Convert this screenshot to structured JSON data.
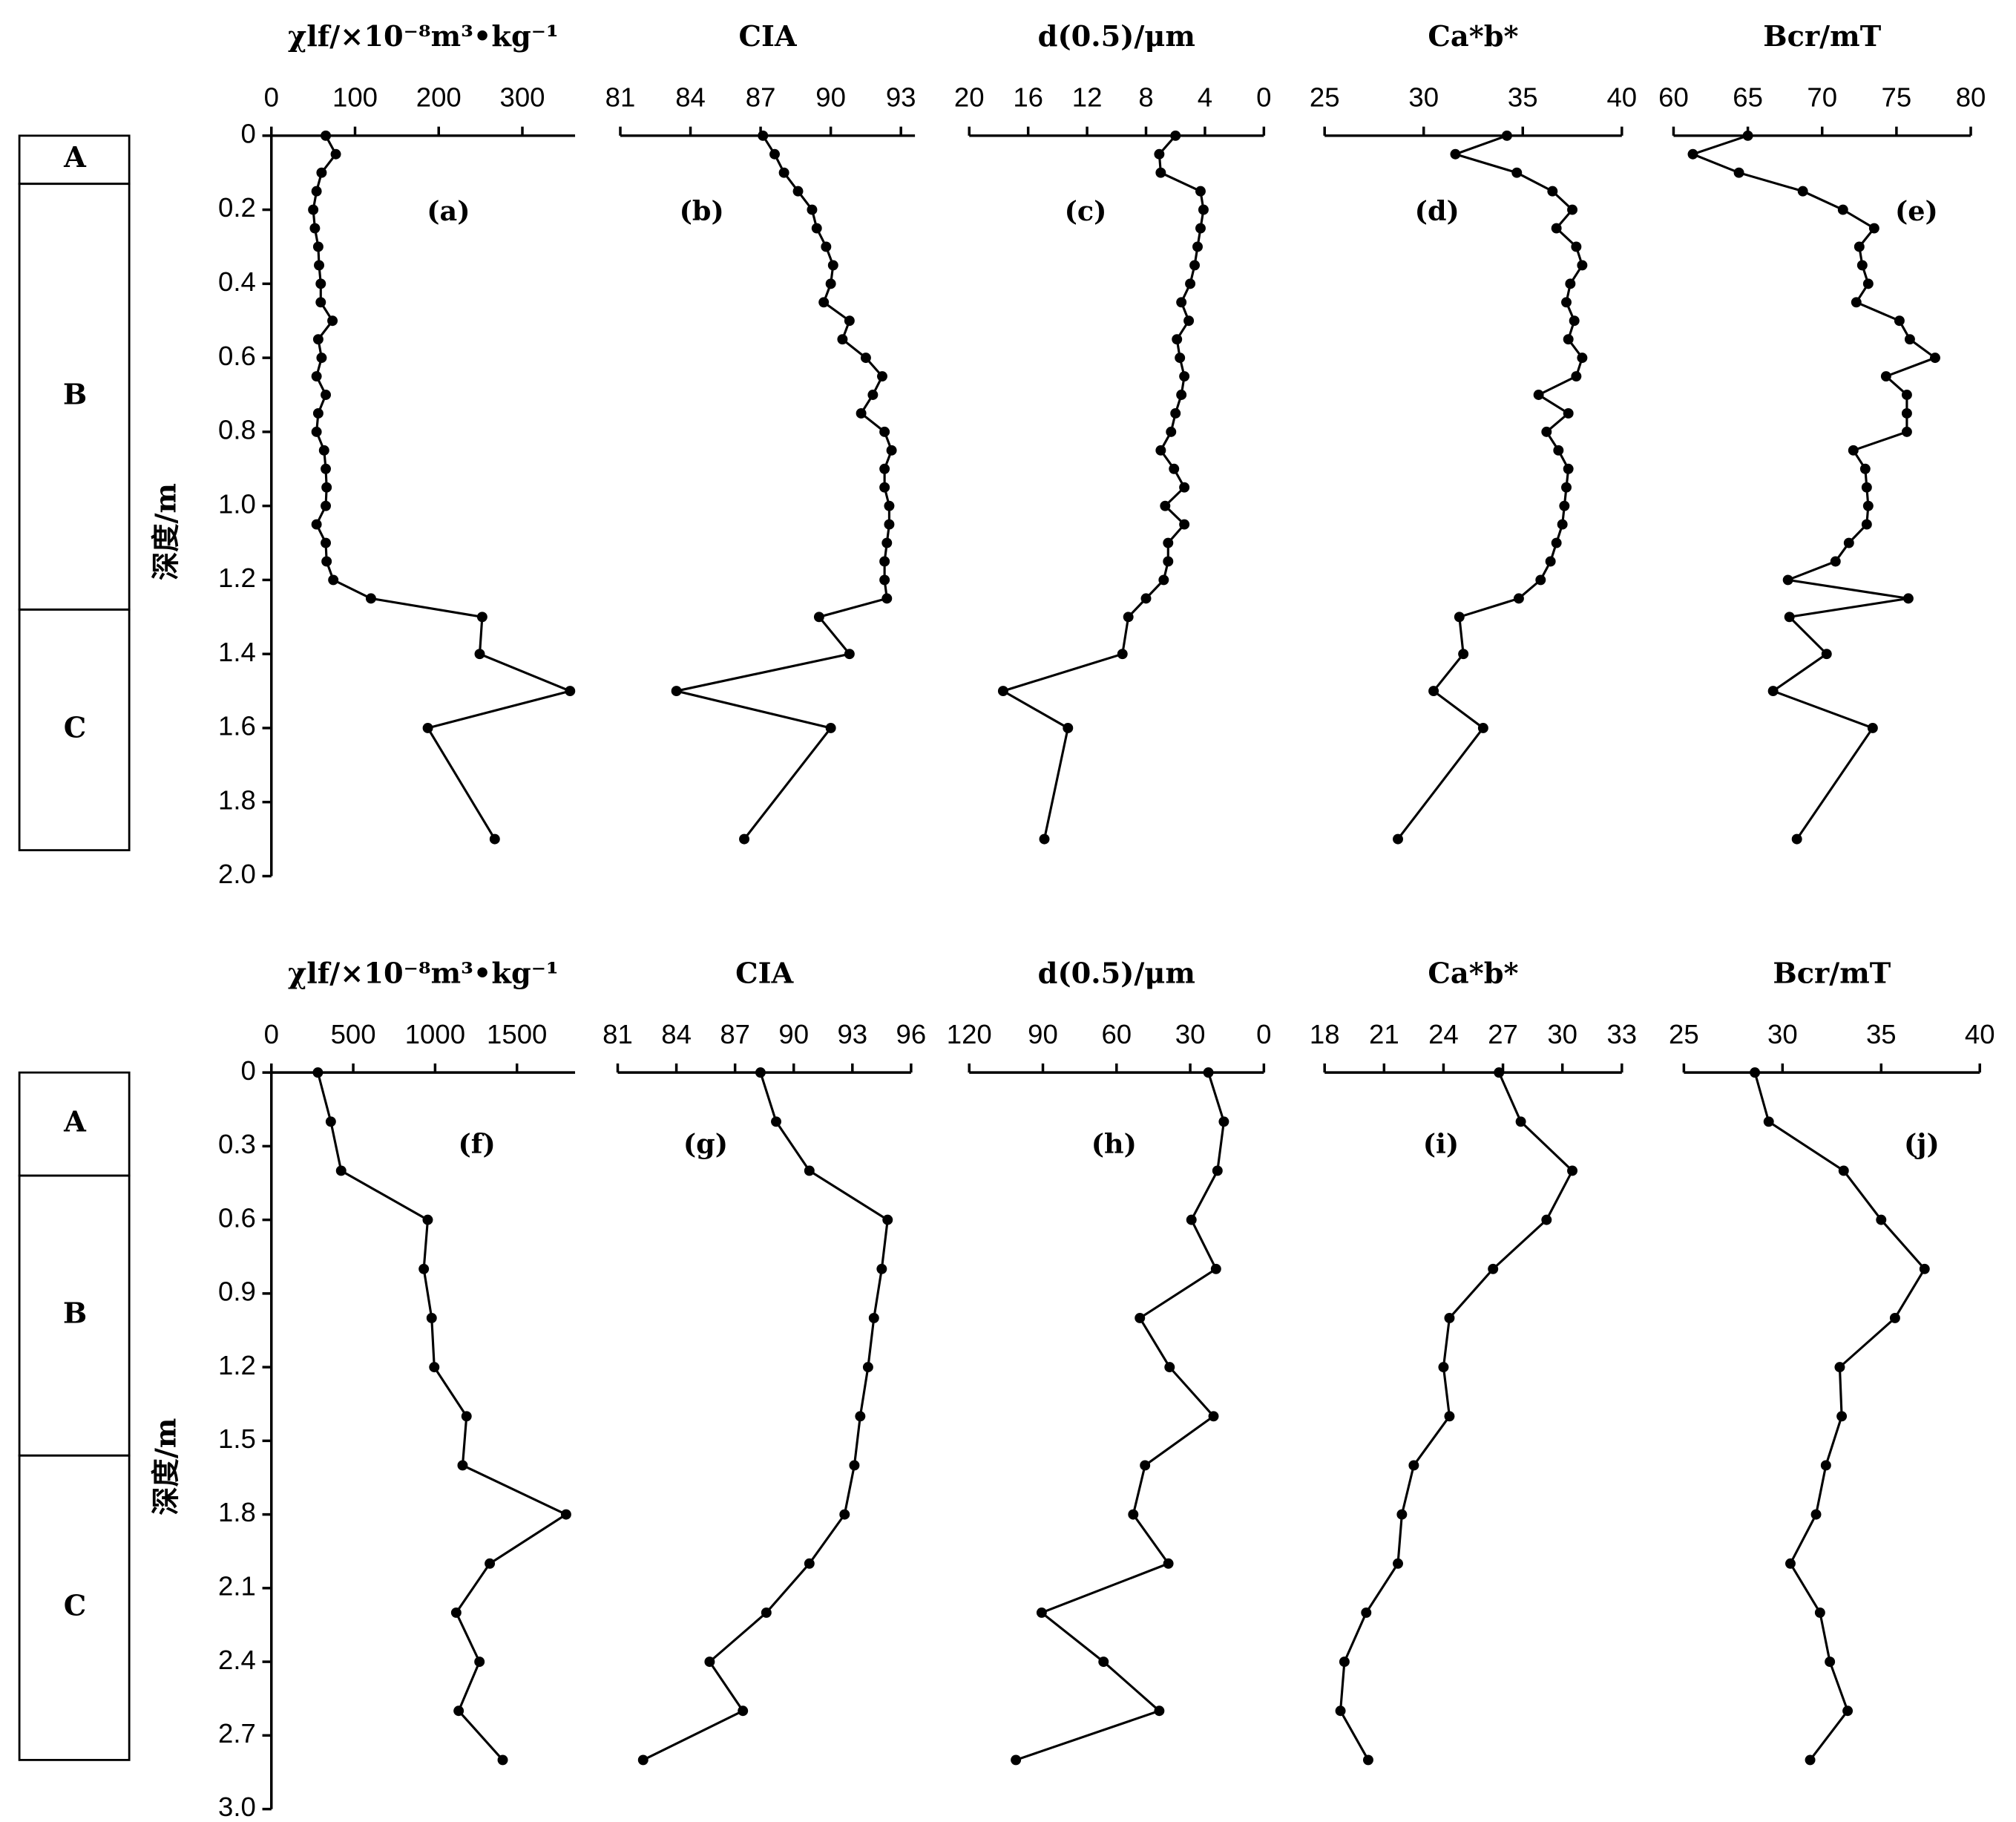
{
  "chart_data": [
    {
      "type": "line",
      "title": "χlf/×10⁻⁸m³•kg⁻¹",
      "panel_label": "(a)",
      "ylabel": "深度/m",
      "ylim": [
        0,
        2
      ],
      "yticks": [
        0,
        0.2,
        0.4,
        0.6,
        0.8,
        {
          "value": 1,
          "label": "1.0"
        },
        1.2,
        1.4,
        1.6,
        1.8,
        {
          "value": 2,
          "label": "2.0"
        }
      ],
      "horizons": [
        {
          "label": "A",
          "top": 0,
          "bottom": 0.13
        },
        {
          "label": "B",
          "top": 0.13,
          "bottom": 1.28
        },
        {
          "label": "C",
          "top": 1.28,
          "bottom": 1.93
        }
      ],
      "xlim": [
        0,
        363
      ],
      "xticks": [
        0,
        100,
        200,
        300
      ],
      "y": [
        0,
        0.05,
        0.1,
        0.15,
        0.2,
        0.25,
        0.3,
        0.35,
        0.4,
        0.45,
        0.5,
        0.55,
        0.6,
        0.65,
        0.7,
        0.75,
        0.8,
        0.85,
        0.9,
        0.95,
        1,
        1.05,
        1.1,
        1.15,
        1.2,
        1.25,
        1.3,
        1.4,
        1.5,
        1.6,
        1.9
      ],
      "values": [
        65,
        77,
        60,
        54,
        50,
        52,
        56,
        57,
        59,
        59,
        73,
        56,
        60,
        54,
        65,
        56,
        54,
        63,
        65,
        66,
        65,
        54,
        65,
        66,
        74,
        119,
        252,
        249,
        357,
        187,
        267
      ]
    },
    {
      "type": "line",
      "title": "CIA",
      "panel_label": "(b)",
      "ylim": [
        0,
        2
      ],
      "xlim": [
        81,
        93.6
      ],
      "xticks": [
        81,
        84,
        87,
        90,
        93
      ],
      "y": [
        0,
        0.05,
        0.1,
        0.15,
        0.2,
        0.25,
        0.3,
        0.35,
        0.4,
        0.45,
        0.5,
        0.55,
        0.6,
        0.65,
        0.7,
        0.75,
        0.8,
        0.85,
        0.9,
        0.95,
        1,
        1.05,
        1.1,
        1.15,
        1.2,
        1.25,
        1.3,
        1.4,
        1.5,
        1.6,
        1.9
      ],
      "values": [
        87.1,
        87.6,
        88.0,
        88.6,
        89.2,
        89.4,
        89.8,
        90.1,
        90.0,
        89.7,
        90.8,
        90.5,
        91.5,
        92.2,
        91.8,
        91.3,
        92.3,
        92.6,
        92.3,
        92.3,
        92.5,
        92.5,
        92.4,
        92.3,
        92.3,
        92.4,
        89.5,
        90.8,
        83.4,
        90.0,
        86.3
      ]
    },
    {
      "type": "line",
      "title": "d(0.5)/μm",
      "panel_label": "(c)",
      "ylim": [
        0,
        2
      ],
      "xlim": [
        20,
        0
      ],
      "xticks": [
        20,
        16,
        12,
        8,
        4,
        0
      ],
      "y": [
        0,
        0.05,
        0.1,
        0.15,
        0.2,
        0.25,
        0.3,
        0.35,
        0.4,
        0.45,
        0.5,
        0.55,
        0.6,
        0.65,
        0.7,
        0.75,
        0.8,
        0.85,
        0.9,
        0.95,
        1,
        1.05,
        1.1,
        1.15,
        1.2,
        1.25,
        1.3,
        1.4,
        1.5,
        1.6,
        1.9
      ],
      "values": [
        6.0,
        7.1,
        7.0,
        4.3,
        4.1,
        4.3,
        4.5,
        4.7,
        5.0,
        5.6,
        5.1,
        5.9,
        5.7,
        5.4,
        5.6,
        6.0,
        6.3,
        7.0,
        6.1,
        5.4,
        6.7,
        5.4,
        6.5,
        6.5,
        6.8,
        8.0,
        9.2,
        9.6,
        17.7,
        13.3,
        14.9
      ]
    },
    {
      "type": "line",
      "title": "Ca*b*",
      "panel_label": "(d)",
      "ylim": [
        0,
        2
      ],
      "xlim": [
        25,
        40
      ],
      "xticks": [
        25,
        30,
        35,
        40
      ],
      "y": [
        0,
        0.05,
        0.1,
        0.15,
        0.2,
        0.25,
        0.3,
        0.35,
        0.4,
        0.45,
        0.5,
        0.55,
        0.6,
        0.65,
        0.7,
        0.75,
        0.8,
        0.85,
        0.9,
        0.95,
        1,
        1.05,
        1.1,
        1.15,
        1.2,
        1.25,
        1.3,
        1.4,
        1.5,
        1.6,
        1.9
      ],
      "values": [
        34.2,
        31.6,
        34.7,
        36.5,
        37.5,
        36.7,
        37.7,
        38.0,
        37.4,
        37.2,
        37.6,
        37.3,
        38.0,
        37.7,
        35.8,
        37.3,
        36.2,
        36.8,
        37.3,
        37.2,
        37.1,
        37.0,
        36.7,
        36.4,
        35.9,
        34.8,
        31.8,
        32.0,
        30.5,
        33.0,
        28.7
      ]
    },
    {
      "type": "line",
      "title": "Bcr/mT",
      "panel_label": "(e)",
      "ylim": [
        0,
        2
      ],
      "xlim": [
        60,
        80
      ],
      "xticks": [
        60,
        65,
        70,
        75,
        80
      ],
      "y": [
        0,
        0.05,
        0.1,
        0.15,
        0.2,
        0.25,
        0.3,
        0.35,
        0.4,
        0.45,
        0.5,
        0.55,
        0.6,
        0.65,
        0.7,
        0.75,
        0.8,
        0.85,
        0.9,
        0.95,
        1,
        1.05,
        1.1,
        1.15,
        1.2,
        1.25,
        1.3,
        1.4,
        1.5,
        1.6,
        1.9
      ],
      "values": [
        65.0,
        61.3,
        64.4,
        68.7,
        71.4,
        73.5,
        72.5,
        72.7,
        73.1,
        72.3,
        75.2,
        75.9,
        77.6,
        74.3,
        75.7,
        75.7,
        75.7,
        72.1,
        72.9,
        73.0,
        73.1,
        73.0,
        71.8,
        70.9,
        67.7,
        75.8,
        67.8,
        70.3,
        66.7,
        73.4,
        68.3
      ]
    },
    {
      "type": "line",
      "title": "χlf/×10⁻⁸m³•kg⁻¹",
      "panel_label": "(f)",
      "ylabel": "深度/m",
      "ylim": [
        0,
        3
      ],
      "yticks": [
        0,
        0.3,
        0.6,
        0.9,
        1.2,
        1.5,
        1.8,
        2.1,
        2.4,
        2.7,
        {
          "value": 3,
          "label": "3.0"
        }
      ],
      "horizons": [
        {
          "label": "A",
          "top": 0,
          "bottom": 0.42
        },
        {
          "label": "B",
          "top": 0.42,
          "bottom": 1.56
        },
        {
          "label": "C",
          "top": 1.56,
          "bottom": 2.8
        }
      ],
      "xlim": [
        0,
        1855
      ],
      "xticks": [
        0,
        500,
        1000,
        1500
      ],
      "y": [
        0,
        0.2,
        0.4,
        0.6,
        0.8,
        1,
        1.2,
        1.4,
        1.6,
        1.8,
        2,
        2.2,
        2.4,
        2.6,
        2.8
      ],
      "values": [
        284,
        363,
        426,
        955,
        931,
        979,
        995,
        1192,
        1168,
        1800,
        1334,
        1129,
        1271,
        1144,
        1413
      ]
    },
    {
      "type": "line",
      "title": "CIA",
      "panel_label": "(g)",
      "ylim": [
        0,
        3
      ],
      "xlim": [
        81,
        96
      ],
      "xticks": [
        81,
        84,
        87,
        90,
        93,
        96
      ],
      "y": [
        0,
        0.2,
        0.4,
        0.6,
        0.8,
        1,
        1.2,
        1.4,
        1.6,
        1.8,
        2,
        2.2,
        2.4,
        2.6,
        2.8
      ],
      "values": [
        88.3,
        89.1,
        90.8,
        94.8,
        94.5,
        94.1,
        93.8,
        93.4,
        93.1,
        92.6,
        90.8,
        88.6,
        85.7,
        87.4,
        82.3
      ]
    },
    {
      "type": "line",
      "title": "d(0.5)/μm",
      "panel_label": "(h)",
      "ylim": [
        0,
        3
      ],
      "xlim": [
        120,
        0
      ],
      "xticks": [
        120,
        90,
        60,
        30,
        0
      ],
      "y": [
        0,
        0.2,
        0.4,
        0.6,
        0.8,
        1,
        1.2,
        1.4,
        1.6,
        1.8,
        2,
        2.2,
        2.4,
        2.6,
        2.8
      ],
      "values": [
        22.6,
        16.3,
        18.9,
        29.5,
        19.5,
        50.5,
        38.4,
        20.5,
        48.4,
        53.2,
        38.9,
        90.5,
        65.3,
        42.6,
        101
      ]
    },
    {
      "type": "line",
      "title": "Ca*b*",
      "panel_label": "(i)",
      "ylim": [
        0,
        3
      ],
      "xlim": [
        18,
        33
      ],
      "xticks": [
        18,
        21,
        24,
        27,
        30,
        33
      ],
      "y": [
        0,
        0.2,
        0.4,
        0.6,
        0.8,
        1,
        1.2,
        1.4,
        1.6,
        1.8,
        2,
        2.2,
        2.4,
        2.6,
        2.8
      ],
      "values": [
        26.8,
        27.9,
        30.5,
        29.2,
        26.5,
        24.3,
        24.0,
        24.3,
        22.5,
        21.9,
        21.7,
        20.1,
        19.0,
        18.8,
        20.2
      ]
    },
    {
      "type": "line",
      "title": "Bcr/mT",
      "panel_label": "(j)",
      "ylim": [
        0,
        3
      ],
      "xlim": [
        25,
        40
      ],
      "xticks": [
        25,
        30,
        35,
        40
      ],
      "y": [
        0,
        0.2,
        0.4,
        0.6,
        0.8,
        1,
        1.2,
        1.4,
        1.6,
        1.8,
        2,
        2.2,
        2.4,
        2.6,
        2.8
      ],
      "values": [
        28.6,
        29.3,
        33.1,
        35.0,
        37.2,
        35.7,
        32.9,
        33.0,
        32.2,
        31.7,
        30.4,
        31.9,
        32.4,
        33.3,
        31.4
      ]
    }
  ]
}
